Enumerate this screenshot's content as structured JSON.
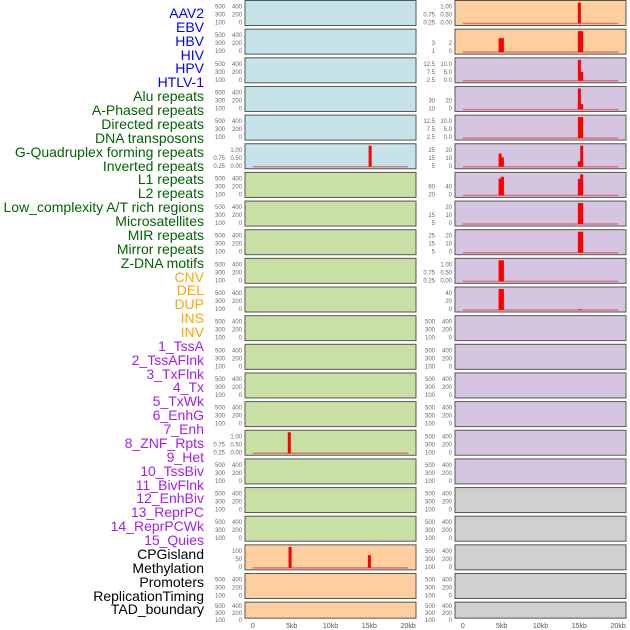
{
  "chart_data": {
    "type": "bar",
    "title": "",
    "xlabel": "",
    "ylabel": "",
    "xlim": [
      -1,
      21
    ],
    "x_ticks": [
      0,
      5,
      10,
      15,
      20
    ],
    "x_tick_labels": [
      "0",
      "5kb",
      "10kb",
      "15kb",
      "20kb"
    ],
    "category_colors": {
      "virus": "#0000ff",
      "repeat": "#006400",
      "sv": "#ffa500",
      "chromatin": "#a020f0",
      "other": "#000000"
    },
    "panel_colors": {
      "virus": "#c6e3ea",
      "repeat": "#c8e0a3",
      "sv": "#fecf9e",
      "chromatin": "#d5c5e1",
      "other": "#d0d0d0"
    },
    "bar_color": "#ff0000",
    "series": [
      {
        "name": "AAV2",
        "group": "virus",
        "yticks": [
          "0",
          "100",
          "200",
          "300",
          "400",
          "500"
        ],
        "ymax": 500,
        "bars": []
      },
      {
        "name": "EBV",
        "group": "virus",
        "yticks": [
          "0",
          "100",
          "200",
          "300",
          "400",
          "500"
        ],
        "ymax": 500,
        "bars": []
      },
      {
        "name": "HBV",
        "group": "virus",
        "yticks": [
          "0",
          "100",
          "200",
          "300",
          "400",
          "500"
        ],
        "ymax": 500,
        "bars": []
      },
      {
        "name": "HIV",
        "group": "virus",
        "yticks": [
          "0",
          "100",
          "200",
          "300",
          "400",
          "500"
        ],
        "ymax": 500,
        "bars": []
      },
      {
        "name": "HPV",
        "group": "virus",
        "yticks": [
          "0",
          "100",
          "200",
          "300",
          "400",
          "500"
        ],
        "ymax": 500,
        "bars": []
      },
      {
        "name": "HTLV-1",
        "group": "virus",
        "yticks": [
          "0.00",
          "0.25",
          "0.50",
          "0.75",
          "1.00"
        ],
        "ymax": 1,
        "bars": [
          {
            "x": 15.1,
            "y": 1
          }
        ]
      },
      {
        "name": "Alu repeats",
        "group": "repeat",
        "yticks": [
          "0",
          "100",
          "200",
          "300",
          "400",
          "500"
        ],
        "ymax": 500,
        "bars": []
      },
      {
        "name": "A-Phased repeats",
        "group": "repeat",
        "yticks": [
          "0",
          "100",
          "200",
          "300",
          "400",
          "500"
        ],
        "ymax": 500,
        "bars": []
      },
      {
        "name": "Directed repeats",
        "group": "repeat",
        "yticks": [
          "0",
          "100",
          "200",
          "300",
          "400",
          "500"
        ],
        "ymax": 500,
        "bars": []
      },
      {
        "name": "DNA transposons",
        "group": "repeat",
        "yticks": [
          "0",
          "100",
          "200",
          "300",
          "400",
          "500"
        ],
        "ymax": 500,
        "bars": []
      },
      {
        "name": "G-Quadruplex forming repeats",
        "group": "repeat",
        "yticks": [
          "0",
          "100",
          "200",
          "300",
          "400",
          "500"
        ],
        "ymax": 500,
        "bars": []
      },
      {
        "name": "Inverted repeats",
        "group": "repeat",
        "yticks": [
          "0",
          "100",
          "200",
          "300",
          "400",
          "500"
        ],
        "ymax": 500,
        "bars": []
      },
      {
        "name": "L1 repeats",
        "group": "repeat",
        "yticks": [
          "0",
          "100",
          "200",
          "300",
          "400",
          "500"
        ],
        "ymax": 500,
        "bars": []
      },
      {
        "name": "L2 repeats",
        "group": "repeat",
        "yticks": [
          "0",
          "100",
          "200",
          "300",
          "400",
          "500"
        ],
        "ymax": 500,
        "bars": []
      },
      {
        "name": "Low_complexity A/T rich regions",
        "group": "repeat",
        "yticks": [
          "0",
          "100",
          "200",
          "300",
          "400",
          "500"
        ],
        "ymax": 500,
        "bars": []
      },
      {
        "name": "Microsatellites",
        "group": "repeat",
        "yticks": [
          "0.00",
          "0.25",
          "0.50",
          "0.75",
          "1.00"
        ],
        "ymax": 1,
        "bars": [
          {
            "x": 4.7,
            "y": 1
          }
        ]
      },
      {
        "name": "MIR repeats",
        "group": "repeat",
        "yticks": [
          "0",
          "100",
          "200",
          "300",
          "400",
          "500"
        ],
        "ymax": 500,
        "bars": []
      },
      {
        "name": "Mirror repeats",
        "group": "repeat",
        "yticks": [
          "0",
          "100",
          "200",
          "300",
          "400",
          "500"
        ],
        "ymax": 500,
        "bars": []
      },
      {
        "name": "Z-DNA motifs",
        "group": "repeat",
        "yticks": [
          "0",
          "100",
          "200",
          "300",
          "400",
          "500"
        ],
        "ymax": 500,
        "bars": []
      },
      {
        "name": "CNV",
        "group": "sv",
        "yticks": [
          "0",
          "50",
          "100"
        ],
        "ymax": 140,
        "bars": [
          {
            "x": 4.8,
            "y": 140
          },
          {
            "x": 15.0,
            "y": 85
          }
        ]
      },
      {
        "name": "DEL",
        "group": "sv",
        "yticks": [
          "0",
          "100",
          "200",
          "300",
          "400",
          "500"
        ],
        "ymax": 500,
        "bars": []
      },
      {
        "name": "DUP",
        "group": "sv",
        "yticks": [
          "0",
          "100",
          "200",
          "300",
          "400",
          "500"
        ],
        "ymax": 500,
        "bars": []
      },
      {
        "name": "INS",
        "group": "sv",
        "yticks": [
          "0.00",
          "0.25",
          "0.50",
          "0.75",
          "1.00"
        ],
        "ymax": 1,
        "bars": [
          {
            "x": 15.0,
            "y": 1
          }
        ]
      },
      {
        "name": "INV",
        "group": "sv",
        "yticks": [
          "0",
          "1",
          "2",
          "3"
        ],
        "ymax": 3,
        "bars": [
          {
            "x": 4.8,
            "y": 2
          },
          {
            "x": 5.1,
            "y": 2
          },
          {
            "x": 15.0,
            "y": 3
          },
          {
            "x": 15.3,
            "y": 3
          }
        ]
      },
      {
        "name": "1_TssA",
        "group": "chromatin",
        "yticks": [
          "0.0",
          "2.5",
          "5.0",
          "7.5",
          "10.0",
          "12.5"
        ],
        "ymax": 13,
        "bars": [
          {
            "x": 15.0,
            "y": 13
          },
          {
            "x": 15.3,
            "y": 5.5
          }
        ]
      },
      {
        "name": "2_TssAFlnk",
        "group": "chromatin",
        "yticks": [
          "0",
          "10",
          "20",
          "30"
        ],
        "ymax": 40,
        "bars": [
          {
            "x": 15.0,
            "y": 40
          },
          {
            "x": 15.3,
            "y": 10
          }
        ]
      },
      {
        "name": "3_TxFlnk",
        "group": "chromatin",
        "yticks": [
          "0.0",
          "2.5",
          "5.0",
          "7.5",
          "10.0",
          "12.5"
        ],
        "ymax": 12.5,
        "bars": [
          {
            "x": 15.0,
            "y": 12.5
          },
          {
            "x": 15.3,
            "y": 12.5
          }
        ]
      },
      {
        "name": "4_Tx",
        "group": "chromatin",
        "yticks": [
          "0",
          "5",
          "10",
          "15",
          "20",
          "25"
        ],
        "ymax": 27,
        "bars": [
          {
            "x": 4.8,
            "y": 17
          },
          {
            "x": 5.1,
            "y": 12
          },
          {
            "x": 15.0,
            "y": 7
          },
          {
            "x": 15.3,
            "y": 27
          }
        ]
      },
      {
        "name": "5_TxWk",
        "group": "chromatin",
        "yticks": [
          "0",
          "20",
          "40",
          "60"
        ],
        "ymax": 70,
        "bars": [
          {
            "x": 4.8,
            "y": 56
          },
          {
            "x": 5.1,
            "y": 62
          },
          {
            "x": 15.0,
            "y": 55
          },
          {
            "x": 15.3,
            "y": 70
          }
        ]
      },
      {
        "name": "6_EnhG",
        "group": "chromatin",
        "yticks": [
          "0",
          "5",
          "10",
          "15",
          "20"
        ],
        "ymax": 20,
        "bars": [
          {
            "x": 15.0,
            "y": 20
          },
          {
            "x": 15.3,
            "y": 20
          }
        ]
      },
      {
        "name": "7_Enh",
        "group": "chromatin",
        "yticks": [
          "0",
          "5",
          "10",
          "15",
          "20",
          "25"
        ],
        "ymax": 25,
        "bars": [
          {
            "x": 15.0,
            "y": 25
          },
          {
            "x": 15.3,
            "y": 25
          }
        ]
      },
      {
        "name": "8_ZNF_Rpts",
        "group": "chromatin",
        "yticks": [
          "0.00",
          "0.25",
          "0.50",
          "0.75",
          "1.00"
        ],
        "ymax": 1,
        "bars": [
          {
            "x": 4.8,
            "y": 1
          },
          {
            "x": 5.1,
            "y": 1
          }
        ]
      },
      {
        "name": "9_Het",
        "group": "chromatin",
        "yticks": [
          "0",
          "20",
          "40"
        ],
        "ymax": 55,
        "bars": [
          {
            "x": 4.8,
            "y": 55
          },
          {
            "x": 5.1,
            "y": 55
          },
          {
            "x": 15.1,
            "y": 2
          }
        ]
      },
      {
        "name": "10_TssBiv",
        "group": "chromatin",
        "yticks": [
          "0",
          "100",
          "200",
          "300",
          "400",
          "500"
        ],
        "ymax": 500,
        "bars": []
      },
      {
        "name": "11_BivFlnk",
        "group": "chromatin",
        "yticks": [
          "0",
          "100",
          "200",
          "300",
          "400",
          "500"
        ],
        "ymax": 500,
        "bars": []
      },
      {
        "name": "12_EnhBiv",
        "group": "chromatin",
        "yticks": [
          "0",
          "100",
          "200",
          "300",
          "400",
          "500"
        ],
        "ymax": 500,
        "bars": []
      },
      {
        "name": "13_ReprPC",
        "group": "chromatin",
        "yticks": [
          "0",
          "100",
          "200",
          "300",
          "400",
          "500"
        ],
        "ymax": 500,
        "bars": []
      },
      {
        "name": "14_ReprPCWk",
        "group": "chromatin",
        "yticks": [
          "0",
          "100",
          "200",
          "300",
          "400",
          "500"
        ],
        "ymax": 500,
        "bars": []
      },
      {
        "name": "15_Quies",
        "group": "chromatin",
        "yticks": [
          "0",
          "100",
          "200",
          "300",
          "400",
          "500"
        ],
        "ymax": 500,
        "bars": []
      },
      {
        "name": "CPGisland",
        "group": "other",
        "yticks": [
          "0",
          "100",
          "200",
          "300",
          "400",
          "500"
        ],
        "ymax": 500,
        "bars": []
      },
      {
        "name": "Methylation",
        "group": "other",
        "yticks": [
          "0",
          "100",
          "200",
          "300",
          "400",
          "500"
        ],
        "ymax": 500,
        "bars": []
      },
      {
        "name": "Promoters",
        "group": "other",
        "yticks": [
          "0",
          "100",
          "200",
          "300",
          "400",
          "500"
        ],
        "ymax": 500,
        "bars": []
      },
      {
        "name": "ReplicationTiming",
        "group": "other",
        "yticks": [
          "0",
          "100",
          "200",
          "300",
          "400",
          "500"
        ],
        "ymax": 500,
        "bars": []
      },
      {
        "name": "TAD_boundary",
        "group": "other",
        "yticks": [
          "0",
          "100",
          "200",
          "300",
          "400",
          "500"
        ],
        "ymax": 500,
        "bars": []
      }
    ]
  }
}
